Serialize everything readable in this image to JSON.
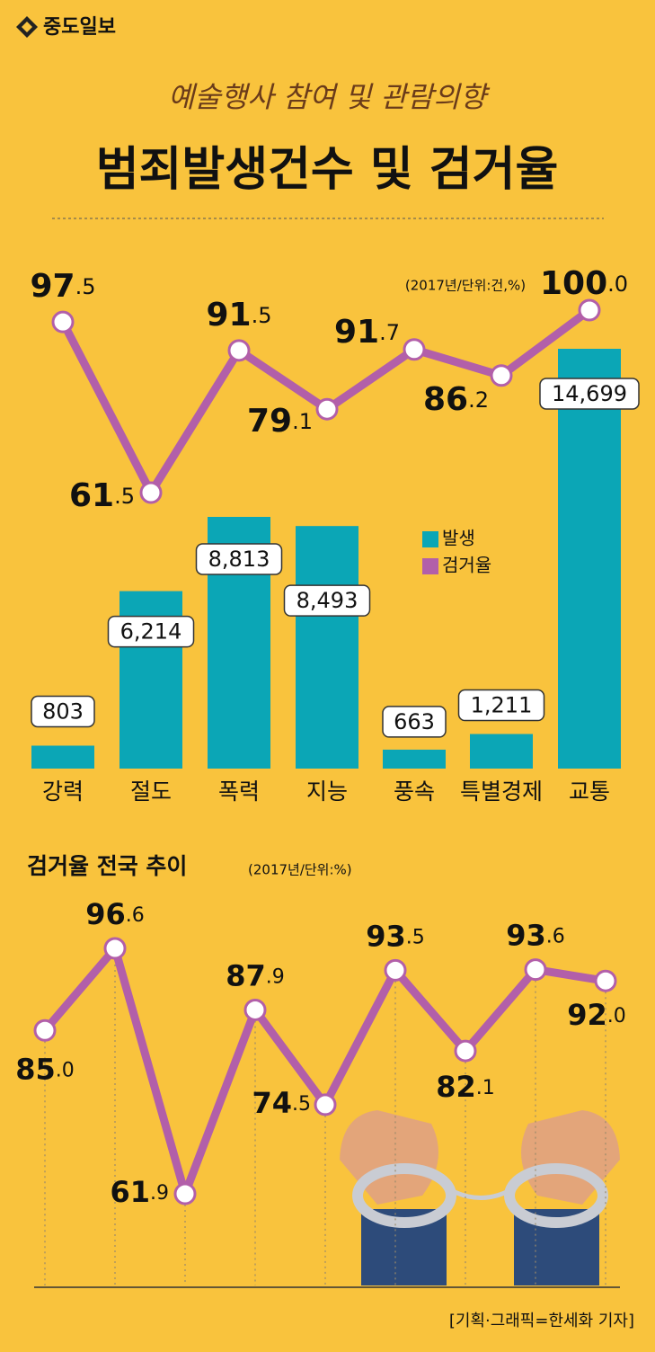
{
  "header": {
    "logo": "중도일보"
  },
  "footer": {
    "credit": "[기획·그래픽=한세화 기자]"
  },
  "chart_data": [
    {
      "type": "bar-line",
      "subtitle": "예술행사 참여 및 관람의향",
      "title": "범죄발생건수 및 검거율",
      "unit_note": "(2017년/단위:건,%)",
      "categories": [
        "강력",
        "절도",
        "폭력",
        "지능",
        "풍속",
        "특별경제",
        "교통"
      ],
      "legend": "right",
      "series": [
        {
          "name": "발생",
          "color": "#0ba6b6",
          "values": [
            803,
            6214,
            8813,
            8493,
            663,
            1211,
            14699
          ],
          "value_labels": [
            "803",
            "6,214",
            "8,813",
            "8,493",
            "663",
            "1,211",
            "14,699"
          ]
        },
        {
          "name": "검거율",
          "color": "#b25fa9",
          "values": [
            97.5,
            61.5,
            91.5,
            79.1,
            91.7,
            86.2,
            100.0
          ],
          "value_labels": [
            "97.5",
            "61.5",
            "91.5",
            "79.1",
            "91.7",
            "86.2",
            "100.0"
          ]
        }
      ]
    },
    {
      "type": "line",
      "title": "검거율 전국 추이",
      "unit_note": "(2017년/단위:%)",
      "color": "#b25fa9",
      "values": [
        85.0,
        96.6,
        61.9,
        87.9,
        74.5,
        93.5,
        82.1,
        93.6,
        92.0
      ],
      "value_labels": [
        "85.0",
        "96.6",
        "61.9",
        "87.9",
        "74.5",
        "93.5",
        "82.1",
        "93.6",
        "92.0"
      ]
    }
  ]
}
